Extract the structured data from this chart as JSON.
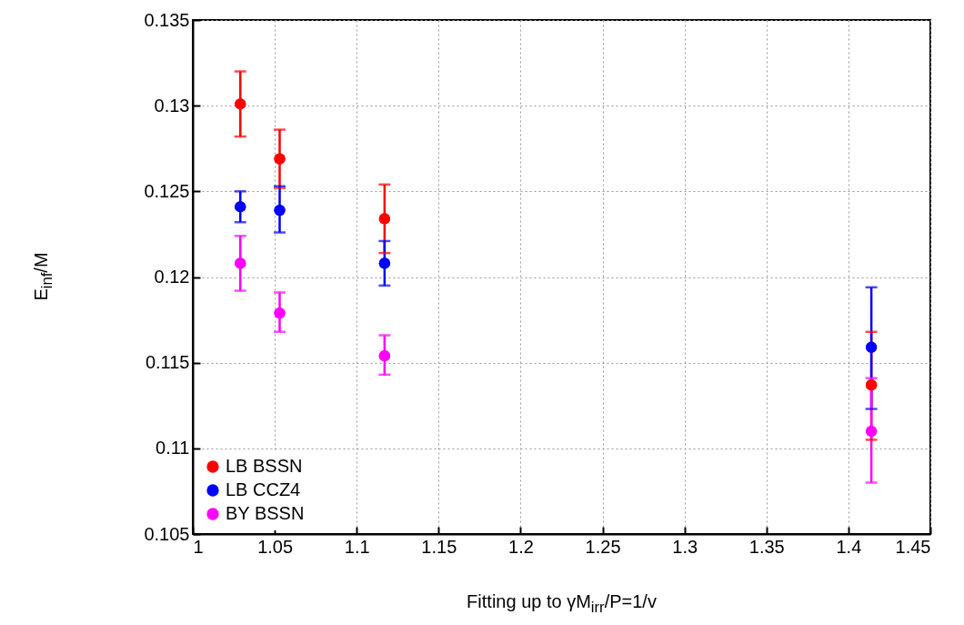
{
  "chart_data": {
    "type": "scatter",
    "xlabel": "Fitting up to γM$_{irr}$/P=1/v",
    "ylabel": "E$_{inf}$/M",
    "x": [
      1.029,
      1.053,
      1.117,
      1.414
    ],
    "series": [
      {
        "name": "LB BSSN",
        "color": "#ff0000",
        "values": [
          0.1301,
          0.1269,
          0.1234,
          0.1137
        ],
        "errors": [
          [
            0.1282,
            0.132
          ],
          [
            0.1252,
            0.1286
          ],
          [
            0.1214,
            0.1254
          ],
          [
            0.1105,
            0.1168
          ]
        ]
      },
      {
        "name": "LB CCZ4",
        "color": "#0000ff",
        "values": [
          0.1241,
          0.1239,
          0.1208,
          0.1159
        ],
        "errors": [
          [
            0.1232,
            0.125
          ],
          [
            0.1226,
            0.1253
          ],
          [
            0.1195,
            0.1221
          ],
          [
            0.1123,
            0.1194
          ]
        ]
      },
      {
        "name": "BY BSSN",
        "color": "#ff00ff",
        "values": [
          0.1208,
          0.1179,
          0.1154,
          0.111
        ],
        "errors": [
          [
            0.1192,
            0.1224
          ],
          [
            0.1168,
            0.1191
          ],
          [
            0.1143,
            0.1166
          ],
          [
            0.108,
            0.1141
          ]
        ]
      }
    ],
    "xlim": [
      1,
      1.45
    ],
    "xticks": [
      1,
      1.05,
      1.1,
      1.15,
      1.2,
      1.25,
      1.3,
      1.35,
      1.4,
      1.45
    ],
    "ylim": [
      0.105,
      0.135
    ],
    "yticks": [
      0.105,
      0.11,
      0.115,
      0.12,
      0.125,
      0.13,
      0.135
    ],
    "grid": true,
    "legend": "bottom left",
    "marker": "circle"
  }
}
